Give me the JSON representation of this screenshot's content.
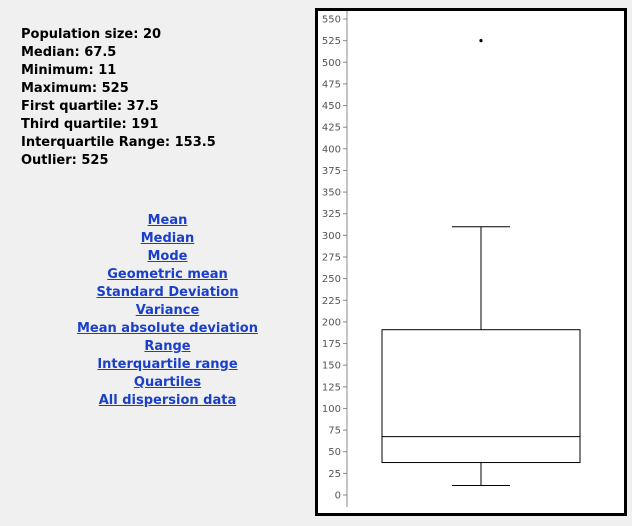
{
  "stats": [
    {
      "label": "Population size:",
      "value": "20"
    },
    {
      "label": "Median:",
      "value": "67.5"
    },
    {
      "label": "Minimum:",
      "value": "11"
    },
    {
      "label": "Maximum:",
      "value": "525"
    },
    {
      "label": "First quartile:",
      "value": "37.5"
    },
    {
      "label": "Third quartile:",
      "value": "191"
    },
    {
      "label": "Interquartile Range:",
      "value": "153.5"
    },
    {
      "label": "Outlier:",
      "value": "525"
    }
  ],
  "links": [
    "Mean",
    "Median",
    "Mode",
    "Geometric mean",
    "Standard Deviation",
    "Variance",
    "Mean absolute deviation",
    "Range",
    "Interquartile range",
    "Quartiles",
    "All dispersion data"
  ],
  "link_color": "#1a3fc9",
  "chart_data": {
    "type": "boxplot",
    "ylim": [
      0,
      550
    ],
    "yticks": [
      0,
      25,
      50,
      75,
      100,
      125,
      150,
      175,
      200,
      225,
      250,
      275,
      300,
      325,
      350,
      375,
      400,
      425,
      450,
      475,
      500,
      525,
      550
    ],
    "whisker_low": 11,
    "q1": 37.5,
    "median": 67.5,
    "q3": 191,
    "whisker_high": 310,
    "outliers": [
      525
    ]
  }
}
